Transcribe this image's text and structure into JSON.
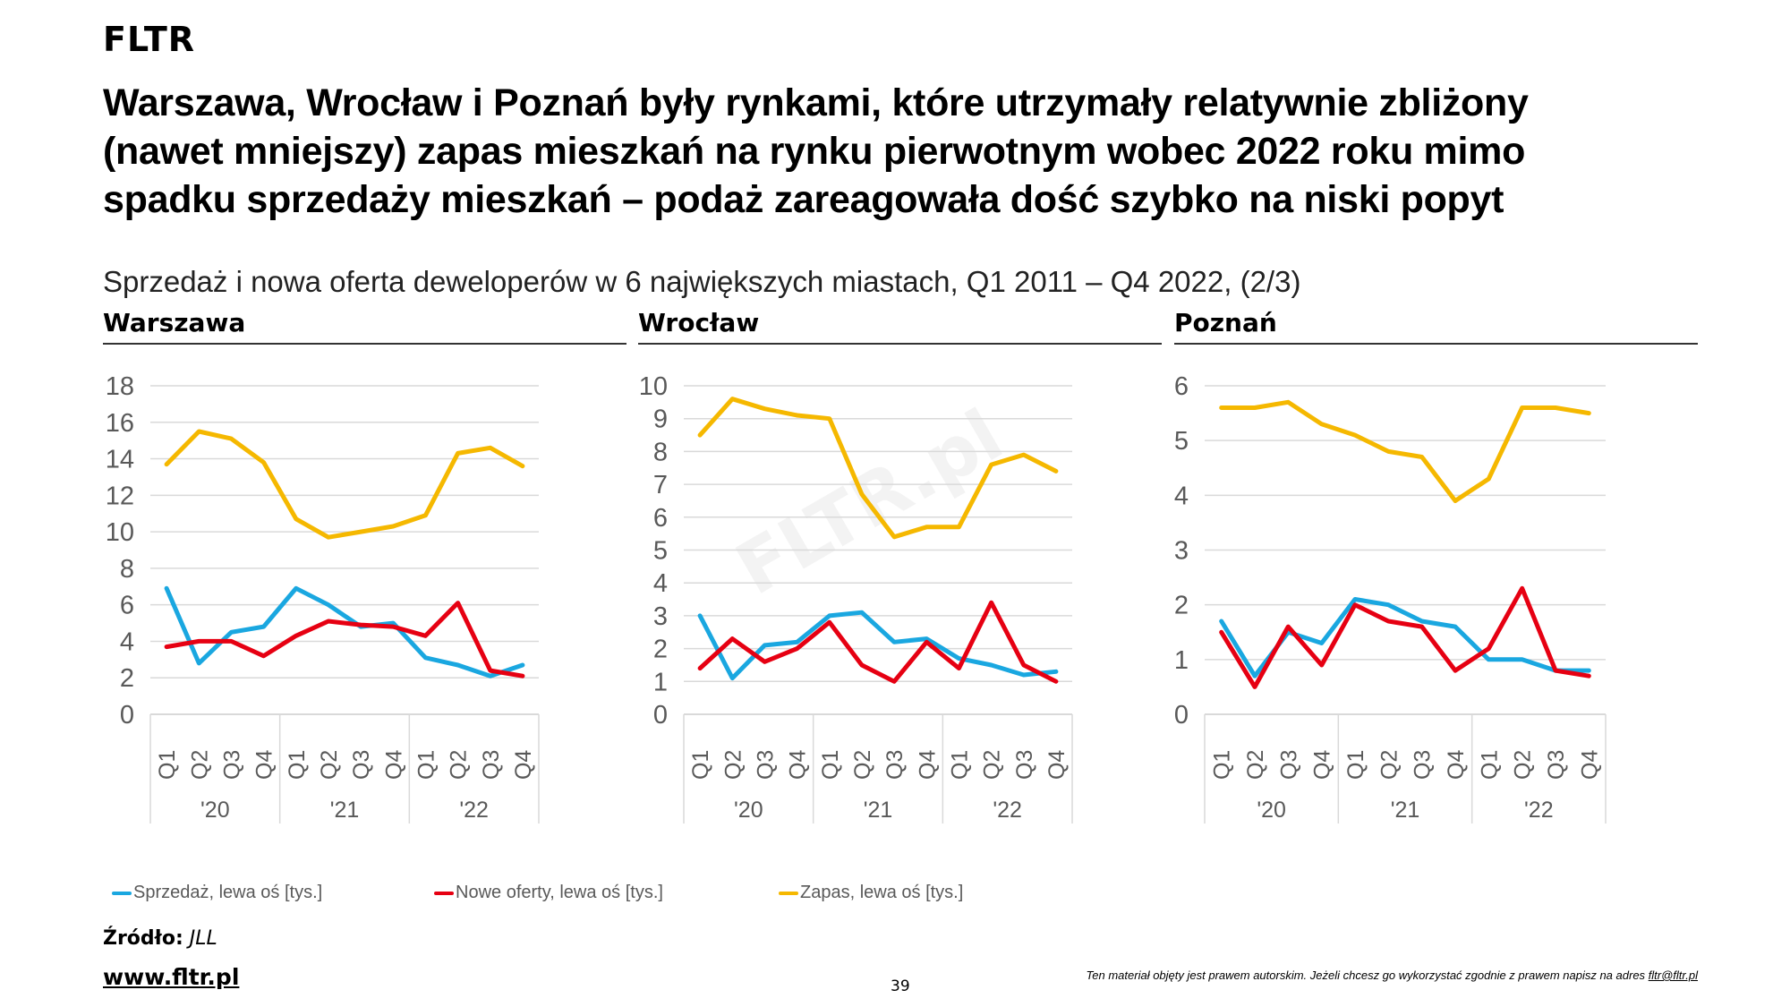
{
  "brand": "FLTR",
  "title_lines": [
    "Warszawa, Wrocław i Poznań były rynkami, które utrzymały relatywnie zbliżony",
    "(nawet mniejszy) zapas mieszkań na rynku pierwotnym wobec 2022 roku mimo",
    "spadku sprzedaży mieszkań – podaż zareagowała dość szybko na niski popyt"
  ],
  "subtitle": "Sprzedaż i nowa oferta deweloperów w 6 największych miastach, Q1 2011 – Q4 2022, (2/3)",
  "watermark": "FLTR.pl",
  "colors": {
    "sales": "#1aa7e0",
    "new_offers": "#e60012",
    "stock": "#f5b800",
    "grid": "#d9d9d9",
    "axis_text": "#595959"
  },
  "legend": [
    {
      "label": "Sprzedaż, lewa oś [tys.]",
      "color": "#1aa7e0"
    },
    {
      "label": "Nowe oferty, lewa oś [tys.]",
      "color": "#e60012"
    },
    {
      "label": "Zapas, lewa oś [tys.]",
      "color": "#f5b800"
    }
  ],
  "source_label": "Źródło:",
  "source_value": "JLL",
  "website": "www.fltr.pl",
  "page_number": "39",
  "copyright_text": "Ten materiał objęty jest prawem autorskim. Jeżeli chcesz go wykorzystać zgodnie z prawem napisz na adres",
  "copyright_email": "fltr@fltr.pl",
  "chart_data": [
    {
      "type": "line",
      "title": "Warszawa",
      "categories": [
        "Q1",
        "Q2",
        "Q3",
        "Q4",
        "Q1",
        "Q2",
        "Q3",
        "Q4",
        "Q1",
        "Q2",
        "Q3",
        "Q4"
      ],
      "groups": [
        "'20",
        "'21",
        "'22"
      ],
      "ylim": [
        0,
        18
      ],
      "yticks": [
        0,
        2,
        4,
        6,
        8,
        10,
        12,
        14,
        16,
        18
      ],
      "grid": true,
      "legend_position": "bottom",
      "series": [
        {
          "name": "Sprzedaż, lewa oś [tys.]",
          "values": [
            6.9,
            2.8,
            4.5,
            4.8,
            6.9,
            6.0,
            4.8,
            5.0,
            3.1,
            2.7,
            2.1,
            2.7
          ]
        },
        {
          "name": "Nowe oferty, lewa oś [tys.]",
          "values": [
            3.7,
            4.0,
            4.0,
            3.2,
            4.3,
            5.1,
            4.9,
            4.8,
            4.3,
            6.1,
            2.4,
            2.1
          ]
        },
        {
          "name": "Zapas, lewa oś [tys.]",
          "values": [
            13.7,
            15.5,
            15.1,
            13.8,
            10.7,
            9.7,
            10.0,
            10.3,
            10.9,
            14.3,
            14.6,
            13.6
          ]
        }
      ]
    },
    {
      "type": "line",
      "title": "Wrocław",
      "categories": [
        "Q1",
        "Q2",
        "Q3",
        "Q4",
        "Q1",
        "Q2",
        "Q3",
        "Q4",
        "Q1",
        "Q2",
        "Q3",
        "Q4"
      ],
      "groups": [
        "'20",
        "'21",
        "'22"
      ],
      "ylim": [
        0,
        10
      ],
      "yticks": [
        0,
        1,
        2,
        3,
        4,
        5,
        6,
        7,
        8,
        9,
        10
      ],
      "grid": true,
      "legend_position": "bottom",
      "series": [
        {
          "name": "Sprzedaż, lewa oś [tys.]",
          "values": [
            3.0,
            1.1,
            2.1,
            2.2,
            3.0,
            3.1,
            2.2,
            2.3,
            1.7,
            1.5,
            1.2,
            1.3
          ]
        },
        {
          "name": "Nowe oferty, lewa oś [tys.]",
          "values": [
            1.4,
            2.3,
            1.6,
            2.0,
            2.8,
            1.5,
            1.0,
            2.2,
            1.4,
            3.4,
            1.5,
            1.0
          ]
        },
        {
          "name": "Zapas, lewa oś [tys.]",
          "values": [
            8.5,
            9.6,
            9.3,
            9.1,
            9.0,
            6.7,
            5.4,
            5.7,
            5.7,
            7.6,
            7.9,
            7.4
          ]
        }
      ]
    },
    {
      "type": "line",
      "title": "Poznań",
      "categories": [
        "Q1",
        "Q2",
        "Q3",
        "Q4",
        "Q1",
        "Q2",
        "Q3",
        "Q4",
        "Q1",
        "Q2",
        "Q3",
        "Q4"
      ],
      "groups": [
        "'20",
        "'21",
        "'22"
      ],
      "ylim": [
        0,
        6
      ],
      "yticks": [
        0,
        1,
        2,
        3,
        4,
        5,
        6
      ],
      "grid": true,
      "legend_position": "bottom",
      "series": [
        {
          "name": "Sprzedaż, lewa oś [tys.]",
          "values": [
            1.7,
            0.7,
            1.5,
            1.3,
            2.1,
            2.0,
            1.7,
            1.6,
            1.0,
            1.0,
            0.8,
            0.8
          ]
        },
        {
          "name": "Nowe oferty, lewa oś [tys.]",
          "values": [
            1.5,
            0.5,
            1.6,
            0.9,
            2.0,
            1.7,
            1.6,
            0.8,
            1.2,
            2.3,
            0.8,
            0.7
          ]
        },
        {
          "name": "Zapas, lewa oś [tys.]",
          "values": [
            5.6,
            5.6,
            5.7,
            5.3,
            5.1,
            4.8,
            4.7,
            3.9,
            4.3,
            5.6,
            5.6,
            5.5
          ]
        }
      ]
    }
  ]
}
